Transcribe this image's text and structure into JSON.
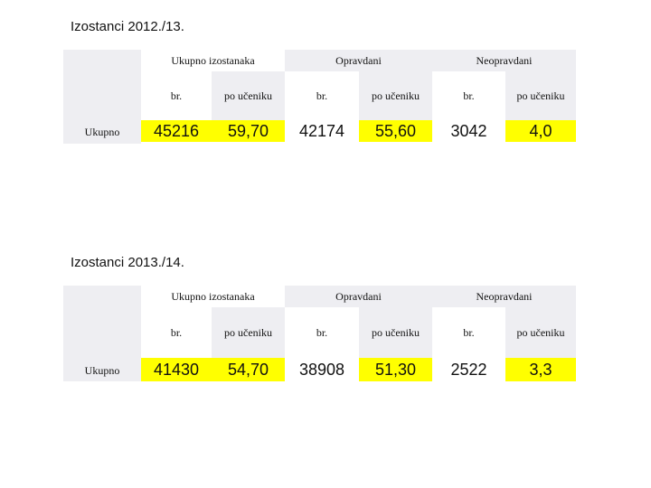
{
  "tables": [
    {
      "title": "Izostanci 2012./13.",
      "groups": [
        "Ukupno izostanaka",
        "Opravdani",
        "Neopravdani"
      ],
      "subheaders": [
        "br.",
        "po učeniku",
        "br.",
        "po učeniku",
        "br.",
        "po učeniku"
      ],
      "row_label": "Ukupno",
      "values": [
        "45216",
        "59,70",
        "42174",
        "55,60",
        "3042",
        "4,0"
      ]
    },
    {
      "title": "Izostanci 2013./14.",
      "groups": [
        "Ukupno izostanaka",
        "Opravdani",
        "Neopravdani"
      ],
      "subheaders": [
        "br.",
        "po učeniku",
        "br.",
        "po učeniku",
        "br.",
        "po učeniku"
      ],
      "row_label": "Ukupno",
      "values": [
        "41430",
        "54,70",
        "38908",
        "51,30",
        "2522",
        "3,3"
      ]
    }
  ],
  "colors": {
    "header_gray": "#eeeef2",
    "highlight_yellow": "#ffff00"
  }
}
